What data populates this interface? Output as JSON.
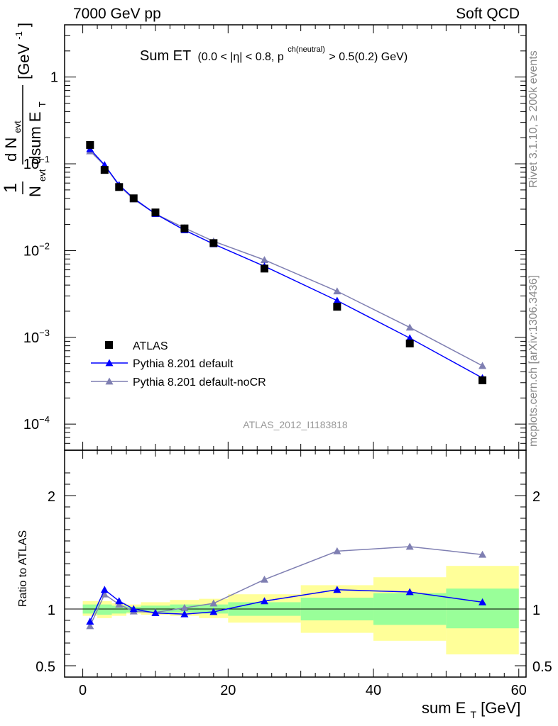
{
  "header": {
    "beam": "7000 GeV pp",
    "process": "Soft QCD"
  },
  "side_labels": {
    "rivet": "Rivet 3.1.10, ≥ 200k events",
    "mcplots": "mcplots.cern.ch [arXiv:1306.3436]"
  },
  "colors": {
    "data": "#000000",
    "default": "#0000ff",
    "nocr": "#7f7fb2",
    "band_inner": "#99ff99",
    "band_outer": "#ffff99"
  },
  "chart_data": [
    {
      "type": "line",
      "title_main": "Sum ET",
      "title_cond_1": "(0.0 < |η| < 0.8, p",
      "title_sup": "ch(neutral)",
      "title_cond_2": " > 0.5(0.2) GeV)",
      "ylabel_num": "1",
      "ylabel_den": "N",
      "ylabel_den_sub": "evt",
      "ylabel_frac_num": "d N",
      "ylabel_frac_num_sub": "evt",
      "ylabel_frac_den": "dsum E",
      "ylabel_frac_den_sub": "T",
      "ylabel_unit": "[GeV",
      "ylabel_unit_sup": "-1",
      "ylabel_unit_end": "]",
      "yscale": "log",
      "ylim": [
        5e-05,
        4
      ],
      "xlim": [
        -2.5,
        61
      ],
      "yticks": [
        {
          "value": 0.0001,
          "base": "10",
          "exp": "−4"
        },
        {
          "value": 0.001,
          "base": "10",
          "exp": "−3"
        },
        {
          "value": 0.01,
          "base": "10",
          "exp": "−2"
        },
        {
          "value": 0.1,
          "base": "10",
          "exp": "−1"
        },
        {
          "value": 1,
          "base": "1",
          "exp": ""
        }
      ],
      "watermark": "ATLAS_2012_I1183818",
      "legend_position": "bottom-left",
      "series": [
        {
          "name": "ATLAS",
          "marker": "square",
          "color": "#000000",
          "x": [
            1,
            3,
            5,
            7,
            10,
            14,
            18,
            25,
            35,
            45,
            55
          ],
          "y": [
            0.165,
            0.085,
            0.054,
            0.04,
            0.0275,
            0.018,
            0.0122,
            0.0062,
            0.00225,
            0.00085,
            0.00032
          ]
        },
        {
          "name": "Pythia 8.201 default",
          "marker": "triangle",
          "color": "#0000ff",
          "x": [
            1,
            3,
            5,
            7,
            10,
            14,
            18,
            25,
            35,
            45,
            55
          ],
          "y": [
            0.148,
            0.097,
            0.057,
            0.04,
            0.0265,
            0.0172,
            0.0119,
            0.0066,
            0.00265,
            0.00098,
            0.00034
          ]
        },
        {
          "name": "Pythia 8.201 default-noCR",
          "marker": "triangle",
          "color": "#7f7fb2",
          "x": [
            1,
            3,
            5,
            7,
            10,
            14,
            18,
            25,
            35,
            45,
            55
          ],
          "y": [
            0.14,
            0.096,
            0.056,
            0.039,
            0.0265,
            0.0182,
            0.0128,
            0.0078,
            0.0034,
            0.0013,
            0.00047
          ]
        }
      ]
    },
    {
      "type": "line",
      "ylabel": "Ratio to ATLAS",
      "xlabel_main": "sum E",
      "xlabel_sub": "T",
      "xlabel_unit": " [GeV]",
      "ylim": [
        0.4,
        2.4
      ],
      "xlim": [
        -2.5,
        61
      ],
      "xticks": [
        0,
        20,
        40,
        60
      ],
      "yticks": [
        0.5,
        1,
        2
      ],
      "bands": [
        {
          "x0": 0,
          "x1": 2,
          "inner": [
            0.96,
            1.04
          ],
          "outer": [
            0.94,
            1.07
          ]
        },
        {
          "x0": 2,
          "x1": 4,
          "inner": [
            0.95,
            1.04
          ],
          "outer": [
            0.92,
            1.07
          ]
        },
        {
          "x0": 4,
          "x1": 6,
          "inner": [
            0.96,
            1.03
          ],
          "outer": [
            0.94,
            1.05
          ]
        },
        {
          "x0": 6,
          "x1": 8,
          "inner": [
            0.97,
            1.02
          ],
          "outer": [
            0.96,
            1.04
          ]
        },
        {
          "x0": 8,
          "x1": 12,
          "inner": [
            0.97,
            1.03
          ],
          "outer": [
            0.95,
            1.06
          ]
        },
        {
          "x0": 12,
          "x1": 16,
          "inner": [
            0.97,
            1.04
          ],
          "outer": [
            0.94,
            1.08
          ]
        },
        {
          "x0": 16,
          "x1": 20,
          "inner": [
            0.96,
            1.04
          ],
          "outer": [
            0.92,
            1.09
          ]
        },
        {
          "x0": 20,
          "x1": 30,
          "inner": [
            0.94,
            1.06
          ],
          "outer": [
            0.88,
            1.13
          ]
        },
        {
          "x0": 30,
          "x1": 40,
          "inner": [
            0.9,
            1.1
          ],
          "outer": [
            0.79,
            1.21
          ]
        },
        {
          "x0": 40,
          "x1": 50,
          "inner": [
            0.86,
            1.14
          ],
          "outer": [
            0.72,
            1.28
          ]
        },
        {
          "x0": 50,
          "x1": 60,
          "inner": [
            0.83,
            1.18
          ],
          "outer": [
            0.6,
            1.38
          ]
        }
      ],
      "series": [
        {
          "name": "Pythia 8.201 default",
          "color": "#0000ff",
          "x": [
            1,
            3,
            5,
            7,
            10,
            14,
            18,
            25,
            35,
            45,
            55
          ],
          "y": [
            0.89,
            1.17,
            1.07,
            1.0,
            0.965,
            0.955,
            0.975,
            1.07,
            1.17,
            1.15,
            1.06
          ]
        },
        {
          "name": "Pythia 8.201 default-noCR",
          "color": "#7f7fb2",
          "x": [
            1,
            3,
            5,
            7,
            10,
            14,
            18,
            25,
            35,
            45,
            55
          ],
          "y": [
            0.85,
            1.13,
            1.04,
            0.98,
            0.97,
            1.01,
            1.05,
            1.26,
            1.51,
            1.55,
            1.48
          ]
        }
      ]
    }
  ]
}
